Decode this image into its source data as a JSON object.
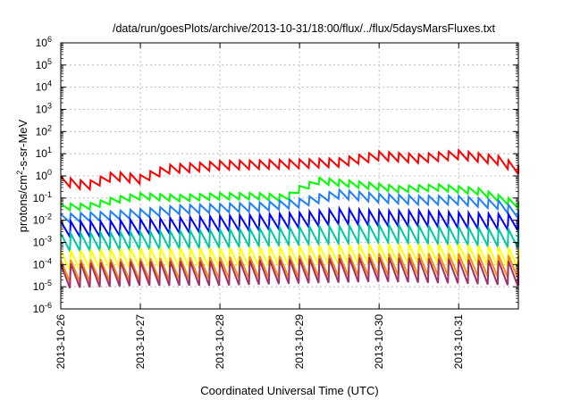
{
  "chart_data": {
    "type": "line",
    "title": "/data/run/goesPlots/archive/2013-10-31/18:00/flux/../flux/5daysMarsFluxes.txt",
    "xlabel": "Coordinated Universal Time (UTC)",
    "ylabel": "protons/cm2-s-sr-MeV",
    "ylabel_parts": {
      "pre": "protons/cm",
      "sup": "2",
      "post": "-s-sr-MeV"
    },
    "xlim": [
      "2013-10-26 00:00",
      "2013-10-31 18:00"
    ],
    "ylim": [
      1e-06,
      1000000.0
    ],
    "yscale": "log",
    "grid": true,
    "legend": "none",
    "x_ticks": [
      "2013-10-26",
      "2013-10-27",
      "2013-10-28",
      "2013-10-29",
      "2013-10-30",
      "2013-10-31"
    ],
    "y_ticks": [
      {
        "base": "10",
        "exp": "-6"
      },
      {
        "base": "10",
        "exp": "-5"
      },
      {
        "base": "10",
        "exp": "-4"
      },
      {
        "base": "10",
        "exp": "-3"
      },
      {
        "base": "10",
        "exp": "-2"
      },
      {
        "base": "10",
        "exp": "-1"
      },
      {
        "base": "10",
        "exp": "0"
      },
      {
        "base": "10",
        "exp": "1"
      },
      {
        "base": "10",
        "exp": "2"
      },
      {
        "base": "10",
        "exp": "3"
      },
      {
        "base": "10",
        "exp": "4"
      },
      {
        "base": "10",
        "exp": "5"
      },
      {
        "base": "10",
        "exp": "6"
      }
    ],
    "sawtooth_period_hours": 3,
    "series": [
      {
        "color": "#ff0000",
        "amplitude_decades": 0.2,
        "x": [
          "2013-10-26 00:00",
          "2013-10-26 08:00",
          "2013-10-26 16:00",
          "2013-10-27 00:00",
          "2013-10-27 08:00",
          "2013-10-27 18:00",
          "2013-10-28 00:00",
          "2013-10-28 12:00",
          "2013-10-29 00:00",
          "2013-10-29 12:00",
          "2013-10-30 00:00",
          "2013-10-30 12:00",
          "2013-10-31 00:00",
          "2013-10-31 12:00",
          "2013-10-31 18:00"
        ],
        "y": [
          0.6,
          0.35,
          1.0,
          0.7,
          2.0,
          2.5,
          3.0,
          3.2,
          3.5,
          4.0,
          8.0,
          6.0,
          9.0,
          5.0,
          2.0
        ]
      },
      {
        "color": "#00ff00",
        "amplitude_decades": 0.15,
        "x": [
          "2013-10-26 00:00",
          "2013-10-26 08:00",
          "2013-10-26 16:00",
          "2013-10-27 00:00",
          "2013-10-27 12:00",
          "2013-10-28 00:00",
          "2013-10-28 12:00",
          "2013-10-28 20:00",
          "2013-10-29 00:00",
          "2013-10-29 06:00",
          "2013-10-29 18:00",
          "2013-10-30 06:00",
          "2013-10-30 18:00",
          "2013-10-31 06:00",
          "2013-10-31 18:00"
        ],
        "y": [
          0.04,
          0.04,
          0.08,
          0.12,
          0.1,
          0.12,
          0.12,
          0.1,
          0.25,
          0.6,
          0.4,
          0.25,
          0.3,
          0.2,
          0.05
        ]
      },
      {
        "color": "#1e7fff",
        "amplitude_decades": 0.2,
        "x": [
          "2013-10-26 00:00",
          "2013-10-26 12:00",
          "2013-10-27 00:00",
          "2013-10-27 12:00",
          "2013-10-28 00:00",
          "2013-10-28 12:00",
          "2013-10-29 00:00",
          "2013-10-29 12:00",
          "2013-10-30 00:00",
          "2013-10-30 12:00",
          "2013-10-31 00:00",
          "2013-10-31 12:00",
          "2013-10-31 18:00"
        ],
        "y": [
          0.012,
          0.015,
          0.02,
          0.03,
          0.035,
          0.04,
          0.06,
          0.15,
          0.1,
          0.08,
          0.08,
          0.05,
          0.02
        ]
      },
      {
        "color": "#0000ff",
        "amplitude_decades": 0.35,
        "x": [
          "2013-10-26 00:00",
          "2013-10-26 12:00",
          "2013-10-27 00:00",
          "2013-10-27 12:00",
          "2013-10-28 00:00",
          "2013-10-28 12:00",
          "2013-10-29 00:00",
          "2013-10-29 12:00",
          "2013-10-30 00:00",
          "2013-10-30 12:00",
          "2013-10-31 00:00",
          "2013-10-31 18:00"
        ],
        "y": [
          0.004,
          0.004,
          0.005,
          0.006,
          0.007,
          0.008,
          0.01,
          0.015,
          0.012,
          0.012,
          0.01,
          0.008
        ]
      },
      {
        "color": "#00c8a0",
        "amplitude_decades": 0.4,
        "x": [
          "2013-10-26 00:00",
          "2013-10-27 00:00",
          "2013-10-28 00:00",
          "2013-10-29 00:00",
          "2013-10-30 00:00",
          "2013-10-31 00:00",
          "2013-10-31 18:00"
        ],
        "y": [
          0.001,
          0.0012,
          0.0015,
          0.002,
          0.0025,
          0.002,
          0.0015
        ]
      },
      {
        "color": "#ffff00",
        "amplitude_decades": 0.45,
        "x": [
          "2013-10-26 00:00",
          "2013-10-27 00:00",
          "2013-10-28 00:00",
          "2013-10-29 00:00",
          "2013-10-30 00:00",
          "2013-10-31 00:00",
          "2013-10-31 18:00"
        ],
        "y": [
          0.00015,
          0.0002,
          0.0002,
          0.00025,
          0.0003,
          0.0003,
          0.0002
        ]
      },
      {
        "color": "#ff8c00",
        "amplitude_decades": 0.5,
        "x": [
          "2013-10-26 00:00",
          "2013-10-27 00:00",
          "2013-10-28 00:00",
          "2013-10-29 00:00",
          "2013-10-30 00:00",
          "2013-10-31 00:00",
          "2013-10-31 18:00"
        ],
        "y": [
          5e-05,
          6e-05,
          7e-05,
          8e-05,
          0.0001,
          0.0001,
          8e-05
        ]
      },
      {
        "color": "#a0306e",
        "amplitude_decades": 0.55,
        "x": [
          "2013-10-26 00:00",
          "2013-10-27 00:00",
          "2013-10-28 00:00",
          "2013-10-29 00:00",
          "2013-10-30 00:00",
          "2013-10-31 00:00",
          "2013-10-31 18:00"
        ],
        "y": [
          3e-05,
          4e-05,
          4e-05,
          5e-05,
          6e-05,
          5e-05,
          4e-05
        ]
      }
    ]
  }
}
